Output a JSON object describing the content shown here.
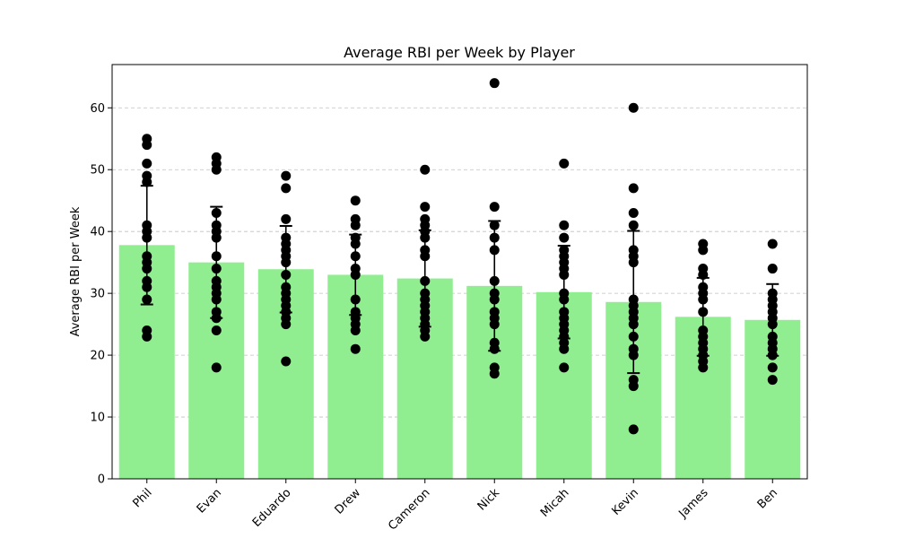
{
  "chart_data": {
    "type": "bar",
    "title": "Average RBI per Week by Player",
    "xlabel": "",
    "ylabel": "Average RBI per Week",
    "ylim": [
      0,
      67
    ],
    "yticks": [
      0,
      10,
      20,
      30,
      40,
      50,
      60
    ],
    "grid": "y-dashed",
    "colors": {
      "bar": "#90ee90",
      "point": "#000000",
      "errorbar": "#000000",
      "grid": "#c0c0c0"
    },
    "categories": [
      "Phil",
      "Evan",
      "Eduardo",
      "Drew",
      "Cameron",
      "Nick",
      "Micah",
      "Kevin",
      "James",
      "Ben"
    ],
    "values": [
      37.8,
      35.0,
      33.9,
      33.0,
      32.4,
      31.2,
      30.2,
      28.6,
      26.2,
      25.7
    ],
    "errors": [
      9.6,
      9.0,
      7.0,
      6.5,
      7.8,
      10.5,
      7.5,
      11.5,
      6.3,
      5.8
    ],
    "points": [
      [
        55,
        54,
        51,
        49,
        48,
        41,
        40,
        39,
        36,
        35,
        34,
        32,
        31,
        29,
        24,
        23
      ],
      [
        52,
        51,
        50,
        43,
        41,
        40,
        39,
        36,
        34,
        32,
        31,
        30,
        29,
        27,
        26,
        24,
        18
      ],
      [
        49,
        47,
        42,
        39,
        38,
        37,
        36,
        35,
        33,
        31,
        30,
        29,
        28,
        27,
        26,
        25,
        19
      ],
      [
        45,
        42,
        41,
        39,
        38,
        36,
        34,
        33,
        29,
        27,
        26,
        25,
        24,
        21
      ],
      [
        50,
        44,
        42,
        41,
        40,
        39,
        37,
        36,
        32,
        30,
        29,
        28,
        27,
        26,
        25,
        24,
        23
      ],
      [
        64,
        44,
        41,
        39,
        37,
        32,
        30,
        29,
        27,
        26,
        25,
        22,
        21,
        18,
        17
      ],
      [
        51,
        41,
        39,
        37,
        36,
        35,
        34,
        33,
        30,
        29,
        27,
        26,
        25,
        24,
        23,
        22,
        21,
        18
      ],
      [
        60,
        47,
        43,
        41,
        37,
        36,
        35,
        29,
        28,
        27,
        26,
        25,
        23,
        21,
        20,
        16,
        15,
        8
      ],
      [
        38,
        37,
        34,
        33,
        31,
        30,
        29,
        27,
        24,
        23,
        22,
        21,
        20,
        19,
        18
      ],
      [
        38,
        34,
        30,
        29,
        28,
        27,
        26,
        25,
        23,
        22,
        21,
        20,
        18,
        16
      ]
    ]
  }
}
